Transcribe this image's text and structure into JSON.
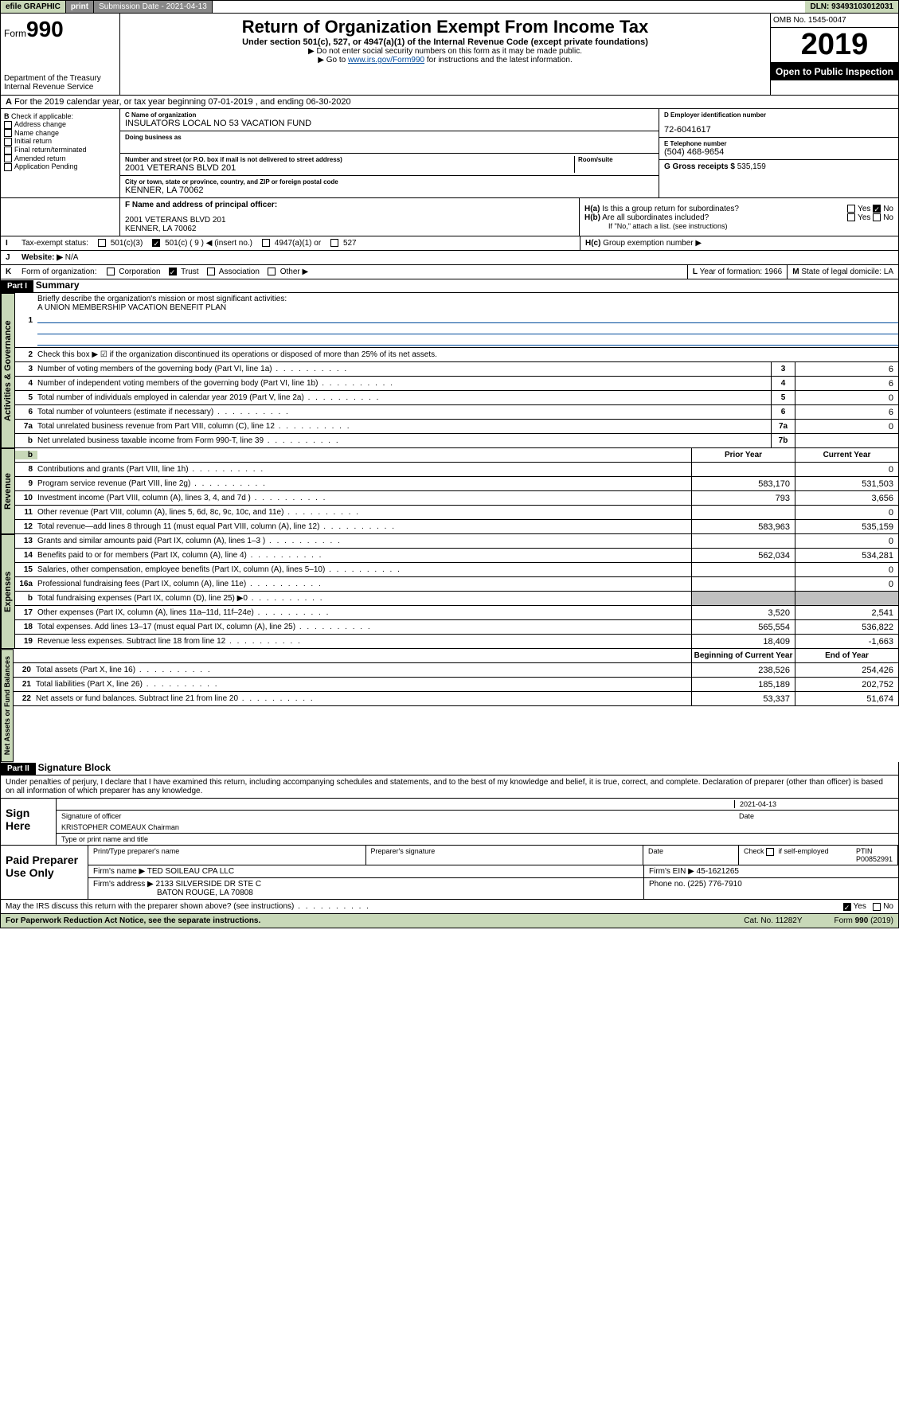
{
  "topbar": {
    "efile": "efile GRAPHIC",
    "print": "print",
    "subdate_label": "Submission Date - 2021-04-13",
    "dln": "DLN: 93493103012031"
  },
  "header": {
    "form_prefix": "Form",
    "form_no": "990",
    "dept": "Department of the Treasury",
    "irs": "Internal Revenue Service",
    "title": "Return of Organization Exempt From Income Tax",
    "sub1": "Under section 501(c), 527, or 4947(a)(1) of the Internal Revenue Code (except private foundations)",
    "sub2": "▶ Do not enter social security numbers on this form as it may be made public.",
    "sub3a": "▶ Go to ",
    "sub3_link": "www.irs.gov/Form990",
    "sub3b": " for instructions and the latest information.",
    "omb": "OMB No. 1545-0047",
    "year": "2019",
    "open": "Open to Public Inspection"
  },
  "A": {
    "text": "For the 2019 calendar year, or tax year beginning 07-01-2019   , and ending 06-30-2020"
  },
  "B": {
    "label": "Check if applicable:",
    "opts": [
      "Address change",
      "Name change",
      "Initial return",
      "Final return/terminated",
      "Amended return",
      "Application Pending"
    ]
  },
  "C": {
    "name_lbl": "C Name of organization",
    "name": "INSULATORS LOCAL NO 53 VACATION FUND",
    "dba_lbl": "Doing business as",
    "addr_lbl": "Number and street (or P.O. box if mail is not delivered to street address)",
    "room_lbl": "Room/suite",
    "addr": "2001 VETERANS BLVD 201",
    "city_lbl": "City or town, state or province, country, and ZIP or foreign postal code",
    "city": "KENNER, LA  70062"
  },
  "D": {
    "lbl": "D Employer identification number",
    "val": "72-6041617"
  },
  "E": {
    "lbl": "E Telephone number",
    "val": "(504) 468-9654"
  },
  "G": {
    "lbl": "G Gross receipts $",
    "val": "535,159"
  },
  "F": {
    "lbl": "F  Name and address of principal officer:",
    "addr1": "2001 VETERANS BLVD 201",
    "addr2": "KENNER, LA  70062"
  },
  "H": {
    "a": "Is this a group return for subordinates?",
    "b": "Are all subordinates included?",
    "bnote": "If \"No,\" attach a list. (see instructions)",
    "c": "Group exemption number ▶",
    "yes": "Yes",
    "no": "No"
  },
  "I": {
    "lbl": "Tax-exempt status:",
    "o1": "501(c)(3)",
    "o2": "501(c) ( 9 ) ◀ (insert no.)",
    "o3": "4947(a)(1) or",
    "o4": "527"
  },
  "J": {
    "lbl": "Website: ▶",
    "val": "N/A"
  },
  "K": {
    "lbl": "Form of organization:",
    "opts": [
      "Corporation",
      "Trust",
      "Association",
      "Other ▶"
    ]
  },
  "L": {
    "lbl": "Year of formation:",
    "val": "1966"
  },
  "M": {
    "lbl": "State of legal domicile:",
    "val": "LA"
  },
  "part1": {
    "bar": "Part I",
    "title": "Summary"
  },
  "vtabs": {
    "gov": "Activities & Governance",
    "rev": "Revenue",
    "exp": "Expenses",
    "net": "Net Assets or Fund Balances"
  },
  "gov": {
    "l1": "Briefly describe the organization's mission or most significant activities:",
    "l1v": "A UNION MEMBERSHIP VACATION BENEFIT PLAN",
    "l2": "Check this box ▶ ☑ if the organization discontinued its operations or disposed of more than 25% of its net assets.",
    "rows": [
      {
        "n": "3",
        "d": "Number of voting members of the governing body (Part VI, line 1a)",
        "nb": "3",
        "v": "6"
      },
      {
        "n": "4",
        "d": "Number of independent voting members of the governing body (Part VI, line 1b)",
        "nb": "4",
        "v": "6"
      },
      {
        "n": "5",
        "d": "Total number of individuals employed in calendar year 2019 (Part V, line 2a)",
        "nb": "5",
        "v": "0"
      },
      {
        "n": "6",
        "d": "Total number of volunteers (estimate if necessary)",
        "nb": "6",
        "v": "6"
      },
      {
        "n": "7a",
        "d": "Total unrelated business revenue from Part VIII, column (C), line 12",
        "nb": "7a",
        "v": "0"
      },
      {
        "n": "b",
        "d": "Net unrelated business taxable income from Form 990-T, line 39",
        "nb": "7b",
        "v": ""
      }
    ]
  },
  "colhdr": {
    "prior": "Prior Year",
    "curr": "Current Year",
    "beg": "Beginning of Current Year",
    "end": "End of Year"
  },
  "rev": [
    {
      "n": "8",
      "d": "Contributions and grants (Part VIII, line 1h)",
      "p": "",
      "c": "0"
    },
    {
      "n": "9",
      "d": "Program service revenue (Part VIII, line 2g)",
      "p": "583,170",
      "c": "531,503"
    },
    {
      "n": "10",
      "d": "Investment income (Part VIII, column (A), lines 3, 4, and 7d )",
      "p": "793",
      "c": "3,656"
    },
    {
      "n": "11",
      "d": "Other revenue (Part VIII, column (A), lines 5, 6d, 8c, 9c, 10c, and 11e)",
      "p": "",
      "c": "0"
    },
    {
      "n": "12",
      "d": "Total revenue—add lines 8 through 11 (must equal Part VIII, column (A), line 12)",
      "p": "583,963",
      "c": "535,159"
    }
  ],
  "exp": [
    {
      "n": "13",
      "d": "Grants and similar amounts paid (Part IX, column (A), lines 1–3 )",
      "p": "",
      "c": "0"
    },
    {
      "n": "14",
      "d": "Benefits paid to or for members (Part IX, column (A), line 4)",
      "p": "562,034",
      "c": "534,281"
    },
    {
      "n": "15",
      "d": "Salaries, other compensation, employee benefits (Part IX, column (A), lines 5–10)",
      "p": "",
      "c": "0"
    },
    {
      "n": "16a",
      "d": "Professional fundraising fees (Part IX, column (A), line 11e)",
      "p": "",
      "c": "0"
    },
    {
      "n": "b",
      "d": "Total fundraising expenses (Part IX, column (D), line 25) ▶0",
      "p": "grey",
      "c": "grey"
    },
    {
      "n": "17",
      "d": "Other expenses (Part IX, column (A), lines 11a–11d, 11f–24e)",
      "p": "3,520",
      "c": "2,541"
    },
    {
      "n": "18",
      "d": "Total expenses. Add lines 13–17 (must equal Part IX, column (A), line 25)",
      "p": "565,554",
      "c": "536,822"
    },
    {
      "n": "19",
      "d": "Revenue less expenses. Subtract line 18 from line 12",
      "p": "18,409",
      "c": "-1,663"
    }
  ],
  "net": [
    {
      "n": "20",
      "d": "Total assets (Part X, line 16)",
      "p": "238,526",
      "c": "254,426"
    },
    {
      "n": "21",
      "d": "Total liabilities (Part X, line 26)",
      "p": "185,189",
      "c": "202,752"
    },
    {
      "n": "22",
      "d": "Net assets or fund balances. Subtract line 21 from line 20",
      "p": "53,337",
      "c": "51,674"
    }
  ],
  "part2": {
    "bar": "Part II",
    "title": "Signature Block"
  },
  "penalty": "Under penalties of perjury, I declare that I have examined this return, including accompanying schedules and statements, and to the best of my knowledge and belief, it is true, correct, and complete. Declaration of preparer (other than officer) is based on all information of which preparer has any knowledge.",
  "sign": {
    "here": "Sign Here",
    "sig_lbl": "Signature of officer",
    "date": "2021-04-13",
    "date_lbl": "Date",
    "name": "KRISTOPHER COMEAUX  Chairman",
    "name_lbl": "Type or print name and title"
  },
  "paid": {
    "lbl": "Paid Preparer Use Only",
    "h1": "Print/Type preparer's name",
    "h2": "Preparer's signature",
    "h3": "Date",
    "h4a": "Check",
    "h4b": "if self-employed",
    "ptin_lbl": "PTIN",
    "ptin": "P00852991",
    "firm_lbl": "Firm's name   ▶",
    "firm": "TED SOILEAU CPA LLC",
    "ein_lbl": "Firm's EIN ▶",
    "ein": "45-1621265",
    "addr_lbl": "Firm's address ▶",
    "addr1": "2133 SILVERSIDE DR STE C",
    "addr2": "BATON ROUGE, LA  70808",
    "phone_lbl": "Phone no.",
    "phone": "(225) 776-7910"
  },
  "discuss": {
    "q": "May the IRS discuss this return with the preparer shown above? (see instructions)",
    "yes": "Yes",
    "no": "No"
  },
  "footer": {
    "l": "For Paperwork Reduction Act Notice, see the separate instructions.",
    "m": "Cat. No. 11282Y",
    "r": "Form 990 (2019)"
  }
}
